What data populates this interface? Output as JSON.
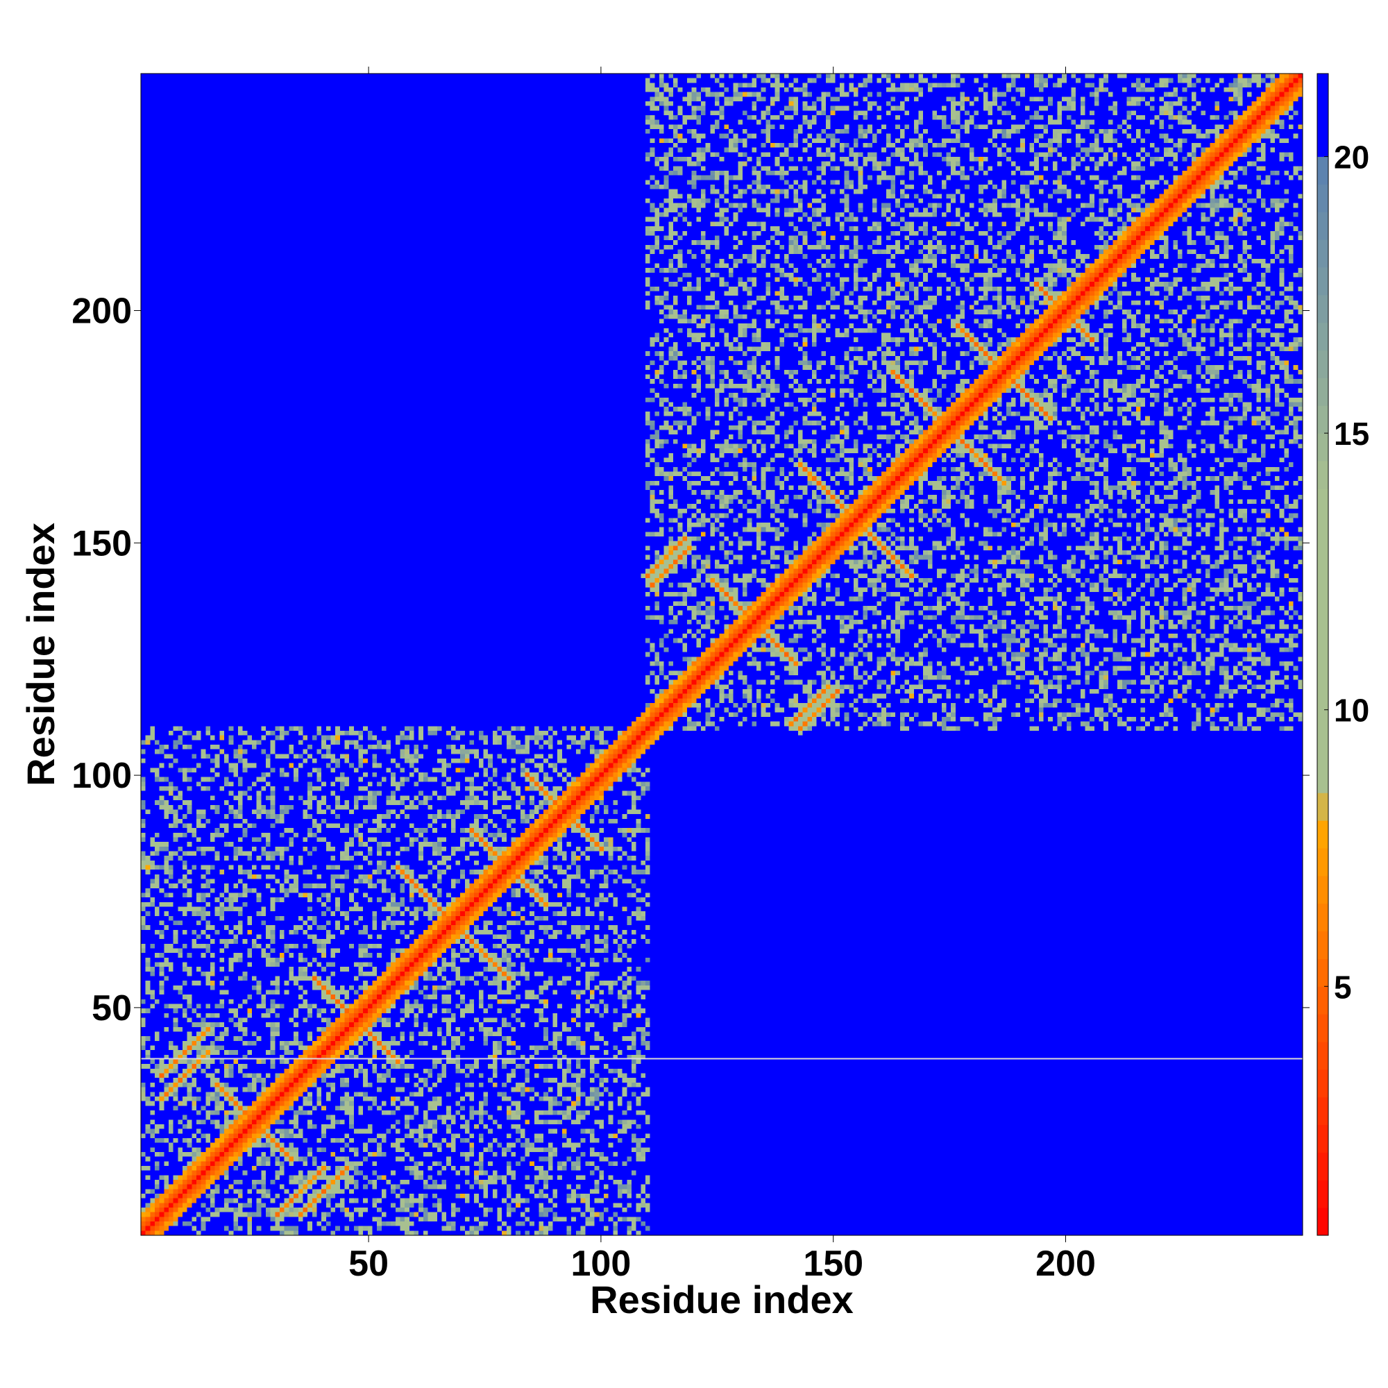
{
  "chart_data": {
    "type": "heatmap",
    "title": "",
    "xlabel": "Residue index",
    "ylabel": "Residue index",
    "xlim": [
      1,
      251
    ],
    "ylim": [
      1,
      251
    ],
    "x_ticks": [
      50,
      100,
      150,
      200
    ],
    "y_ticks": [
      50,
      100,
      150,
      200
    ],
    "n_residues": 251,
    "value_cap": 21.5,
    "colorbar": {
      "range": [
        0.5,
        21.5
      ],
      "ticks": [
        5,
        10,
        15,
        20
      ],
      "colors": {
        "low": "#ff0000",
        "mid_low": "#ff6600",
        "mid": "#ffaa00",
        "mid_high": "#a8c090",
        "high": "#5a80b0",
        "over": "#0000ff"
      }
    },
    "domains": [
      {
        "start": 1,
        "end": 110
      },
      {
        "start": 110,
        "end": 251
      }
    ],
    "contact_bands": [
      {
        "orientation": "anti",
        "i": 25,
        "j": 25,
        "half_length": 8
      },
      {
        "orientation": "anti",
        "i": 47,
        "j": 47,
        "half_length": 9
      },
      {
        "orientation": "anti",
        "i": 68,
        "j": 68,
        "half_length": 12
      },
      {
        "orientation": "anti",
        "i": 80,
        "j": 80,
        "half_length": 8
      },
      {
        "orientation": "anti",
        "i": 92,
        "j": 92,
        "half_length": 8
      },
      {
        "orientation": "anti",
        "i": 133,
        "j": 133,
        "half_length": 9
      },
      {
        "orientation": "anti",
        "i": 155,
        "j": 155,
        "half_length": 12
      },
      {
        "orientation": "anti",
        "i": 175,
        "j": 175,
        "half_length": 12
      },
      {
        "orientation": "anti",
        "i": 187,
        "j": 187,
        "half_length": 10
      },
      {
        "orientation": "anti",
        "i": 200,
        "j": 200,
        "half_length": 6
      },
      {
        "orientation": "parallel",
        "i": 10,
        "j": 40,
        "half_length": 5
      },
      {
        "orientation": "parallel",
        "i": 35,
        "j": 10,
        "half_length": 5
      },
      {
        "orientation": "parallel",
        "i": 114,
        "j": 147,
        "half_length": 4
      },
      {
        "orientation": "parallel",
        "i": 145,
        "j": 115,
        "half_length": 4
      }
    ],
    "gap_row": 39
  }
}
